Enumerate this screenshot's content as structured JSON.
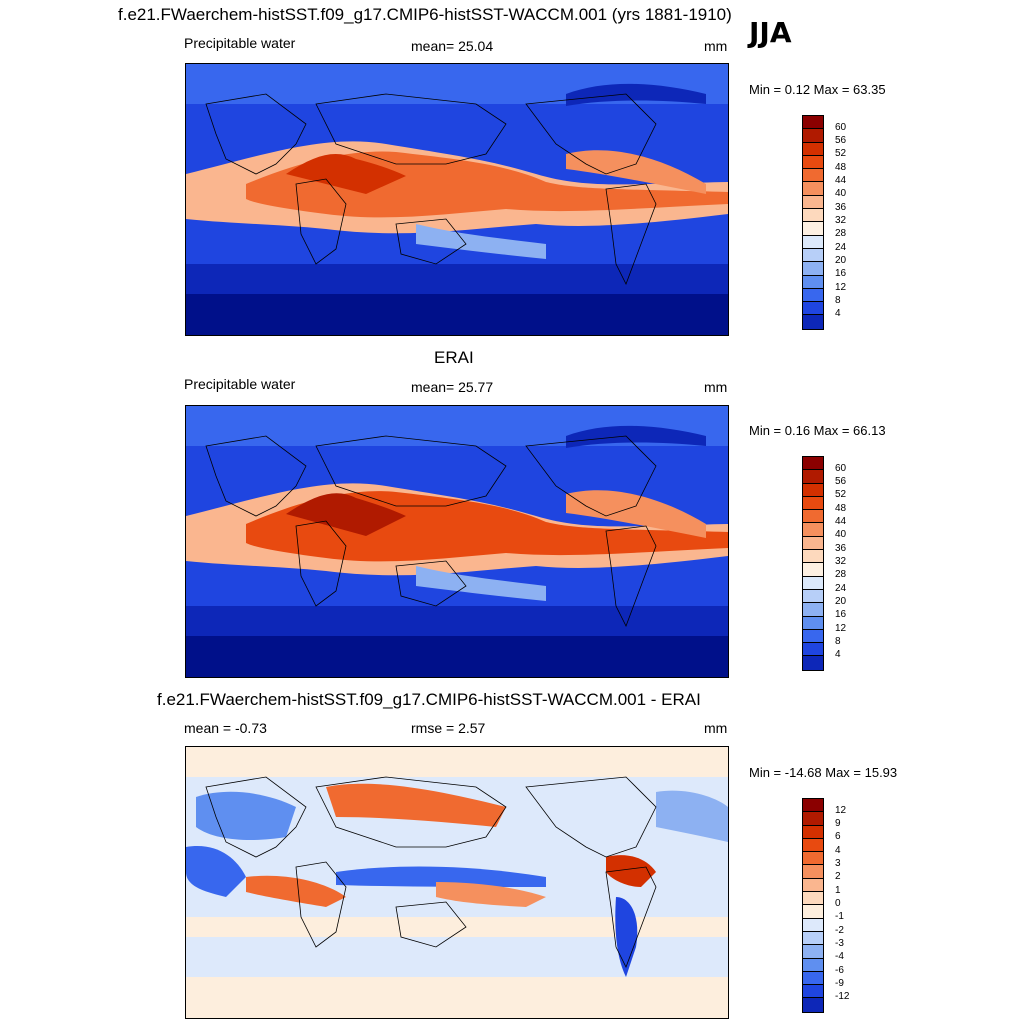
{
  "season": "JJA",
  "panels": [
    {
      "title": "f.e21.FWaerchem-histSST.f09_g17.CMIP6-histSST-WACCM.001 (yrs 1881-1910)",
      "left_label": "Precipitable water",
      "center_label": "mean=  25.04",
      "units": "mm",
      "minmax": "Min =   0.12 Max =  63.35",
      "colorbar": {
        "ticks": [
          "60",
          "56",
          "52",
          "48",
          "44",
          "40",
          "36",
          "32",
          "28",
          "24",
          "20",
          "16",
          "12",
          "8",
          "4"
        ],
        "colors": [
          "#8b0000",
          "#b01a00",
          "#d33000",
          "#e84a10",
          "#f06a30",
          "#f5905e",
          "#fab68f",
          "#fdd9bd",
          "#fdf0e2",
          "#dce9fb",
          "#b7cff8",
          "#8db1f2",
          "#5f8ff0",
          "#3867ee",
          "#1f45e0",
          "#0d27b8",
          "#00108a"
        ]
      }
    },
    {
      "title": "ERAI",
      "left_label": "Precipitable water",
      "center_label": "mean=  25.77",
      "units": "mm",
      "minmax": "Min =   0.16 Max =  66.13",
      "colorbar": {
        "ticks": [
          "60",
          "56",
          "52",
          "48",
          "44",
          "40",
          "36",
          "32",
          "28",
          "24",
          "20",
          "16",
          "12",
          "8",
          "4"
        ],
        "colors": [
          "#8b0000",
          "#b01a00",
          "#d33000",
          "#e84a10",
          "#f06a30",
          "#f5905e",
          "#fab68f",
          "#fdd9bd",
          "#fdf0e2",
          "#dce9fb",
          "#b7cff8",
          "#8db1f2",
          "#5f8ff0",
          "#3867ee",
          "#1f45e0",
          "#0d27b8",
          "#00108a"
        ]
      }
    },
    {
      "title": "f.e21.FWaerchem-histSST.f09_g17.CMIP6-histSST-WACCM.001 - ERAI",
      "left_label": "mean =  -0.73",
      "center_label": "rmse =    2.57",
      "units": "mm",
      "minmax": "Min = -14.68 Max =  15.93",
      "colorbar": {
        "ticks": [
          "12",
          "9",
          "6",
          "4",
          "3",
          "2",
          "1",
          "0",
          "-1",
          "-2",
          "-3",
          "-4",
          "-6",
          "-9",
          "-12"
        ],
        "colors": [
          "#8b0000",
          "#b01a00",
          "#d33000",
          "#e84a10",
          "#f06a30",
          "#f5905e",
          "#fab68f",
          "#fdd9bd",
          "#fdeedd",
          "#dde9fb",
          "#b7cff8",
          "#8db1f2",
          "#5f8ff0",
          "#3867ee",
          "#1f45e0",
          "#0d27b8",
          "#00108a"
        ]
      }
    }
  ]
}
